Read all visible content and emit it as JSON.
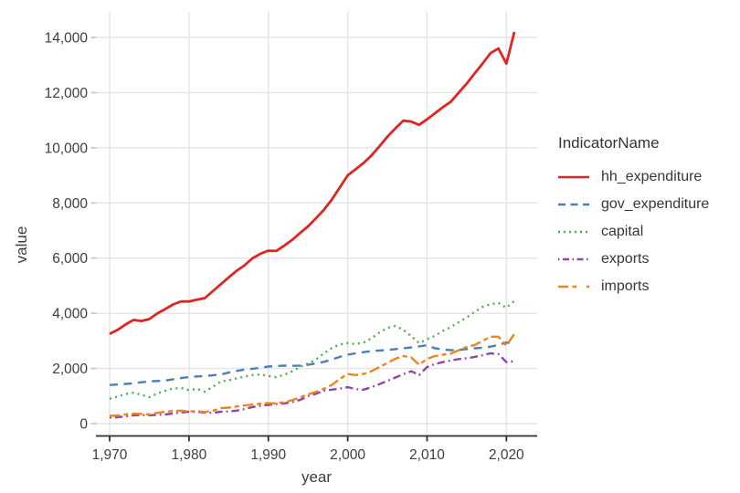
{
  "figure": {
    "y_axis_title": "value",
    "x_axis_title": "year",
    "legend_title": "IndicatorName"
  },
  "colors": {
    "hh_expenditure": "#e0241f",
    "gov_expenditure": "#4c7fb8",
    "capital": "#4fae4f",
    "exports": "#8f46a9",
    "imports": "#f0831e",
    "gridline": "#e4e4e4",
    "axis_line": "#2f2f2f",
    "tick_text": "#3d3d3d"
  },
  "chart_data": {
    "type": "line",
    "title": "",
    "xlabel": "year",
    "ylabel": "value",
    "legend_title": "IndicatorName",
    "legend_position": "right",
    "grid": true,
    "xlim": [
      1968.3,
      2023.9
    ],
    "ylim": [
      -460,
      14900
    ],
    "x_tick_values": [
      1970,
      1980,
      1990,
      2000,
      2010,
      2020
    ],
    "x_tick_labels": [
      "1,970",
      "1,980",
      "1,990",
      "2,000",
      "2,010",
      "2,020"
    ],
    "y_tick_values": [
      0,
      2000,
      4000,
      6000,
      8000,
      10000,
      12000,
      14000
    ],
    "y_tick_labels": [
      "0",
      "2,000",
      "4,000",
      "6,000",
      "8,000",
      "10,000",
      "12,000",
      "14,000"
    ],
    "x": [
      1970,
      1971,
      1972,
      1973,
      1974,
      1975,
      1976,
      1977,
      1978,
      1979,
      1980,
      1981,
      1982,
      1983,
      1984,
      1985,
      1986,
      1987,
      1988,
      1989,
      1990,
      1991,
      1992,
      1993,
      1994,
      1995,
      1996,
      1997,
      1998,
      1999,
      2000,
      2001,
      2002,
      2003,
      2004,
      2005,
      2006,
      2007,
      2008,
      2009,
      2010,
      2011,
      2012,
      2013,
      2014,
      2015,
      2016,
      2017,
      2018,
      2019,
      2020,
      2021
    ],
    "series": [
      {
        "name": "hh_expenditure",
        "color": "#e0241f",
        "dash": "solid",
        "values": [
          3250,
          3400,
          3590,
          3760,
          3720,
          3790,
          3990,
          4150,
          4320,
          4430,
          4430,
          4490,
          4550,
          4800,
          5050,
          5300,
          5540,
          5740,
          5990,
          6160,
          6270,
          6260,
          6450,
          6660,
          6910,
          7150,
          7440,
          7750,
          8120,
          8560,
          9000,
          9220,
          9450,
          9720,
          10050,
          10400,
          10700,
          10980,
          10950,
          10830,
          11030,
          11250,
          11470,
          11670,
          12000,
          12330,
          12700,
          13050,
          13430,
          13600,
          13050,
          14200
        ]
      },
      {
        "name": "gov_expenditure",
        "color": "#4c7fb8",
        "dash": "dashed",
        "values": [
          1400,
          1420,
          1440,
          1460,
          1500,
          1530,
          1545,
          1560,
          1610,
          1650,
          1690,
          1710,
          1720,
          1750,
          1780,
          1850,
          1910,
          1960,
          1990,
          2030,
          2070,
          2090,
          2100,
          2095,
          2105,
          2130,
          2180,
          2240,
          2320,
          2420,
          2500,
          2550,
          2590,
          2630,
          2650,
          2670,
          2700,
          2730,
          2760,
          2800,
          2840,
          2730,
          2690,
          2660,
          2670,
          2700,
          2730,
          2750,
          2790,
          2850,
          2940,
          2900
        ]
      },
      {
        "name": "capital",
        "color": "#4fae4f",
        "dash": "dotted",
        "values": [
          900,
          980,
          1070,
          1120,
          1050,
          960,
          1090,
          1190,
          1270,
          1290,
          1210,
          1260,
          1160,
          1330,
          1530,
          1570,
          1640,
          1700,
          1760,
          1780,
          1730,
          1680,
          1770,
          1900,
          2060,
          2180,
          2320,
          2550,
          2740,
          2870,
          2920,
          2880,
          2940,
          3090,
          3300,
          3470,
          3540,
          3400,
          3170,
          2920,
          3060,
          3180,
          3360,
          3500,
          3680,
          3850,
          4050,
          4230,
          4330,
          4380,
          4200,
          4450
        ]
      },
      {
        "name": "exports",
        "color": "#8f46a9",
        "dash": "dashdot",
        "values": [
          220,
          235,
          260,
          300,
          310,
          300,
          320,
          330,
          370,
          400,
          430,
          430,
          400,
          390,
          430,
          440,
          470,
          530,
          600,
          650,
          680,
          710,
          730,
          780,
          860,
          1000,
          1080,
          1190,
          1230,
          1270,
          1320,
          1250,
          1230,
          1320,
          1430,
          1550,
          1670,
          1790,
          1900,
          1760,
          2050,
          2160,
          2230,
          2290,
          2340,
          2370,
          2420,
          2480,
          2550,
          2520,
          2230,
          2260
        ]
      },
      {
        "name": "imports",
        "color": "#f0831e",
        "dash": "longdash",
        "values": [
          280,
          290,
          330,
          360,
          350,
          330,
          390,
          430,
          460,
          470,
          440,
          450,
          420,
          470,
          560,
          580,
          620,
          660,
          690,
          720,
          740,
          730,
          780,
          850,
          950,
          1060,
          1150,
          1260,
          1400,
          1620,
          1800,
          1760,
          1800,
          1900,
          2050,
          2200,
          2350,
          2450,
          2400,
          2130,
          2350,
          2450,
          2500,
          2540,
          2660,
          2780,
          2850,
          3000,
          3150,
          3150,
          2830,
          3250
        ]
      }
    ]
  }
}
